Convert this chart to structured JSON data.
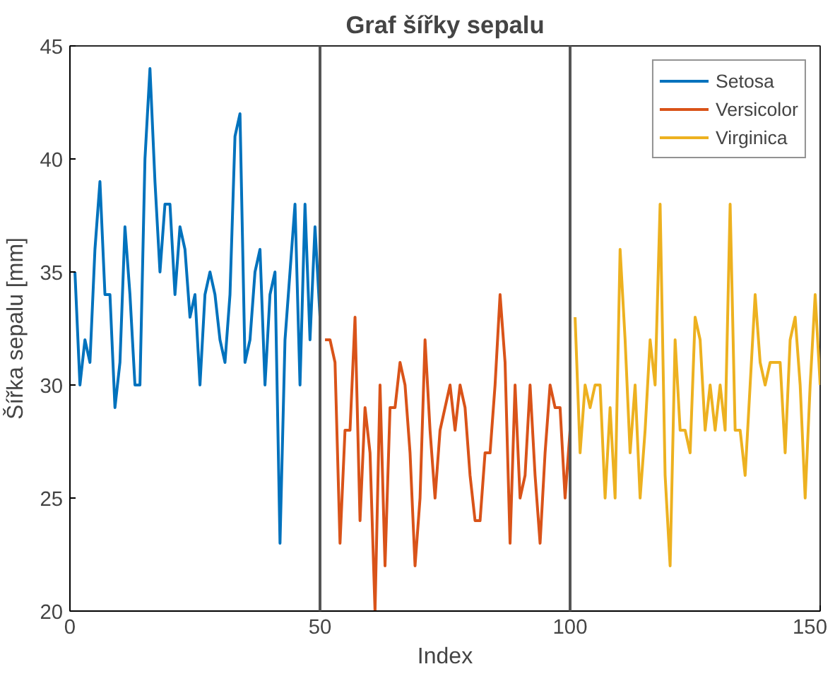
{
  "chart_data": {
    "type": "line",
    "title": "Graf šířky sepalu",
    "xlabel": "Index",
    "ylabel": "Šířka sepalu [mm]",
    "xlim": [
      0,
      150
    ],
    "ylim": [
      20,
      45
    ],
    "xticks": [
      0,
      50,
      100,
      150
    ],
    "yticks": [
      20,
      25,
      30,
      35,
      40,
      45
    ],
    "grid": false,
    "legend": "top right",
    "marker": "none",
    "line_style": "solid",
    "ref_lines": [
      {
        "axis": "x",
        "value": 50,
        "label": null,
        "color": "#555555"
      },
      {
        "axis": "x",
        "value": 100,
        "label": null,
        "color": "#555555"
      }
    ],
    "series": [
      {
        "name": "Setosa",
        "color": "#0072bd",
        "x": [
          1,
          2,
          3,
          4,
          5,
          6,
          7,
          8,
          9,
          10,
          11,
          12,
          13,
          14,
          15,
          16,
          17,
          18,
          19,
          20,
          21,
          22,
          23,
          24,
          25,
          26,
          27,
          28,
          29,
          30,
          31,
          32,
          33,
          34,
          35,
          36,
          37,
          38,
          39,
          40,
          41,
          42,
          43,
          44,
          45,
          46,
          47,
          48,
          49,
          50
        ],
        "values": [
          35,
          30,
          32,
          31,
          36,
          39,
          34,
          34,
          29,
          31,
          37,
          34,
          30,
          30,
          40,
          44,
          39,
          35,
          38,
          38,
          34,
          37,
          36,
          33,
          34,
          30,
          34,
          35,
          34,
          32,
          31,
          34,
          41,
          42,
          31,
          32,
          35,
          36,
          30,
          34,
          35,
          23,
          32,
          35,
          38,
          30,
          38,
          32,
          37,
          33
        ]
      },
      {
        "name": "Versicolor",
        "color": "#d95319",
        "x": [
          51,
          52,
          53,
          54,
          55,
          56,
          57,
          58,
          59,
          60,
          61,
          62,
          63,
          64,
          65,
          66,
          67,
          68,
          69,
          70,
          71,
          72,
          73,
          74,
          75,
          76,
          77,
          78,
          79,
          80,
          81,
          82,
          83,
          84,
          85,
          86,
          87,
          88,
          89,
          90,
          91,
          92,
          93,
          94,
          95,
          96,
          97,
          98,
          99,
          100
        ],
        "values": [
          32,
          32,
          31,
          23,
          28,
          28,
          33,
          24,
          29,
          27,
          20,
          30,
          22,
          29,
          29,
          31,
          30,
          27,
          22,
          25,
          32,
          28,
          25,
          28,
          29,
          30,
          28,
          30,
          29,
          26,
          24,
          24,
          27,
          27,
          30,
          34,
          31,
          23,
          30,
          25,
          26,
          30,
          26,
          23,
          27,
          30,
          29,
          29,
          25,
          28
        ]
      },
      {
        "name": "Virginica",
        "color": "#edb120",
        "x": [
          101,
          102,
          103,
          104,
          105,
          106,
          107,
          108,
          109,
          110,
          111,
          112,
          113,
          114,
          115,
          116,
          117,
          118,
          119,
          120,
          121,
          122,
          123,
          124,
          125,
          126,
          127,
          128,
          129,
          130,
          131,
          132,
          133,
          134,
          135,
          136,
          137,
          138,
          139,
          140,
          141,
          142,
          143,
          144,
          145,
          146,
          147,
          148,
          149,
          150
        ],
        "values": [
          33,
          27,
          30,
          29,
          30,
          30,
          25,
          29,
          25,
          36,
          32,
          27,
          30,
          25,
          28,
          32,
          30,
          38,
          26,
          22,
          32,
          28,
          28,
          27,
          33,
          32,
          28,
          30,
          28,
          30,
          28,
          38,
          28,
          28,
          26,
          30,
          34,
          31,
          30,
          31,
          31,
          31,
          27,
          32,
          33,
          30,
          25,
          30,
          34,
          30
        ]
      }
    ]
  }
}
